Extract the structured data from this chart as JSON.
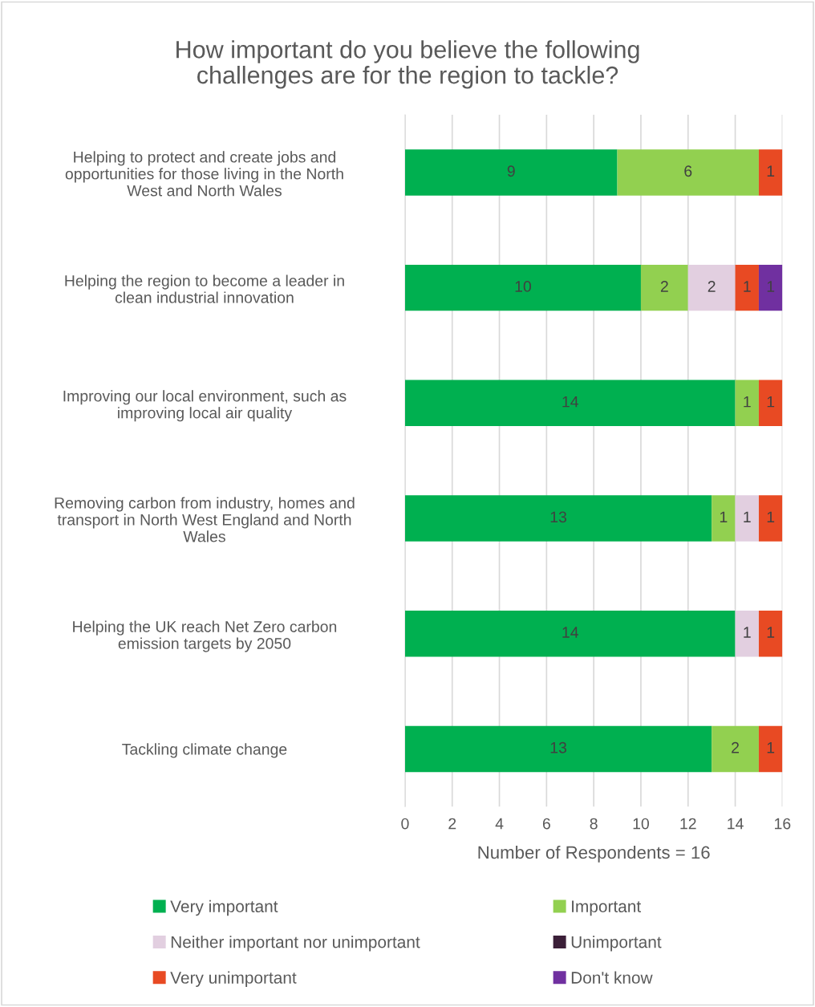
{
  "chart_data": {
    "type": "bar",
    "orientation": "horizontal",
    "stacked": true,
    "title": "How important do you believe the following\nchallenges are for the region to tackle?",
    "xlabel": "Number of Respondents = 16",
    "categories": [
      "Helping to protect and create jobs and\nopportunities for those living in the North\nWest and North Wales",
      "Helping the region to become a leader in\nclean industrial innovation",
      "Improving our local environment, such as\nimproving local air quality",
      "Removing carbon from industry, homes and\ntransport in North West England and North\nWales",
      "Helping the UK reach Net Zero carbon\nemission targets by 2050",
      "Tackling climate change"
    ],
    "series": [
      {
        "name": "Very important",
        "color": "#00b050",
        "values": [
          9,
          10,
          14,
          13,
          14,
          13
        ]
      },
      {
        "name": "Important",
        "color": "#92d050",
        "values": [
          6,
          2,
          1,
          1,
          null,
          2
        ]
      },
      {
        "name": "Neither important nor unimportant",
        "color": "#e2cfe0",
        "values": [
          null,
          2,
          null,
          1,
          1,
          null
        ]
      },
      {
        "name": "Unimportant",
        "color": "#3b1f38",
        "values": [
          null,
          null,
          null,
          null,
          null,
          null
        ]
      },
      {
        "name": "Very unimportant",
        "color": "#e84a23",
        "values": [
          1,
          1,
          1,
          1,
          1,
          1
        ]
      },
      {
        "name": "Don't know",
        "color": "#7030a0",
        "values": [
          null,
          1,
          null,
          null,
          null,
          null
        ]
      }
    ],
    "xlim": [
      0,
      16
    ],
    "xticks": [
      0,
      2,
      4,
      6,
      8,
      10,
      12,
      14,
      16
    ],
    "grid": "x",
    "legend": "bottom",
    "data_labels": true
  }
}
